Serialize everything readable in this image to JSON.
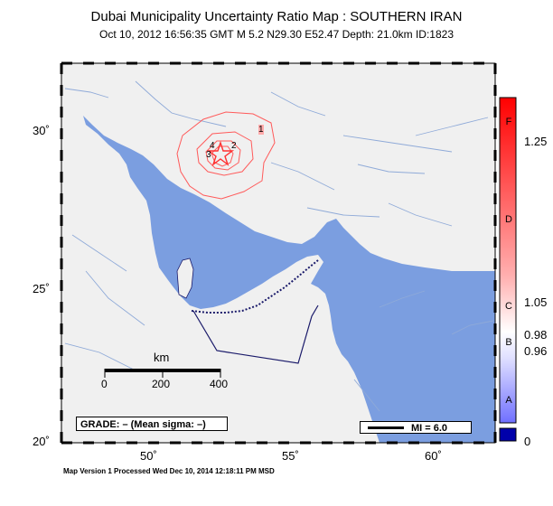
{
  "title": "Dubai Municipality Uncertainty Ratio Map : SOUTHERN IRAN",
  "subtitle": "Oct 10, 2012 16:56:35 GMT   M 5.2   N29.30 E52.47   Depth: 21.0km   ID:1823",
  "footer": "Map Version 1 Processed Wed Dec 10, 2014 12:18:11 PM MSD",
  "lat_labels": [
    "30˚",
    "25˚",
    "20˚"
  ],
  "lon_labels": [
    "50˚",
    "55˚",
    "60˚"
  ],
  "scale": {
    "title": "km",
    "labels": [
      "0",
      "200",
      "400"
    ]
  },
  "grade_text": "GRADE: – (Mean sigma: –)",
  "mi_text": "MI = 6.0",
  "colorbar": {
    "values": [
      "1.25",
      "1.05",
      "0.98",
      "0.96",
      "0"
    ],
    "grades": [
      "F",
      "D",
      "C",
      "B",
      "A"
    ]
  },
  "contour_labels": [
    "1",
    "2",
    "3",
    "4"
  ],
  "epicenter": {
    "lat": 29.3,
    "lon": 52.47
  },
  "colors": {
    "water": "#7b9ee0",
    "land": "#f0f0f0",
    "contour": "#ff5a5a",
    "border": "#1a1a6a"
  }
}
